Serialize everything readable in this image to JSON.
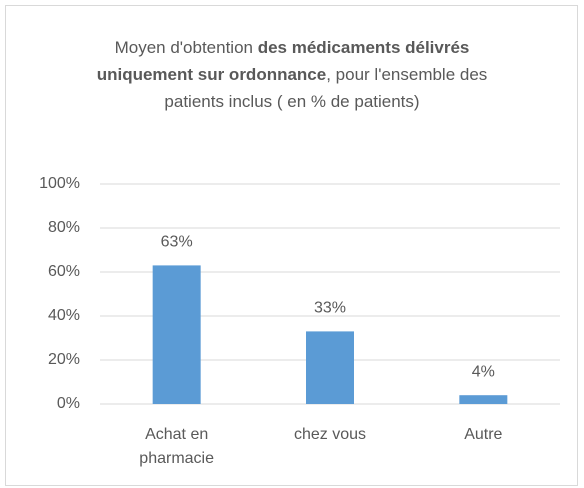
{
  "chart_data": {
    "type": "bar",
    "title": [
      {
        "text": "Moyen d'obtention ",
        "bold": false
      },
      {
        "text": "des médicaments délivrés uniquement sur ordonnance",
        "bold": true
      },
      {
        "text": ",  pour l'ensemble des patients inclus ( en % de patients)",
        "bold": false
      }
    ],
    "categories": [
      "Achat en pharmacie",
      "chez vous",
      "Autre"
    ],
    "values": [
      63,
      33,
      4
    ],
    "value_labels": [
      "63%",
      "33%",
      "4%"
    ],
    "color": "#5b9bd5",
    "ylim": [
      0,
      100
    ],
    "yticks": [
      {
        "value": 0,
        "label": "0%"
      },
      {
        "value": 20,
        "label": "20%"
      },
      {
        "value": 40,
        "label": "40%"
      },
      {
        "value": 60,
        "label": "60%"
      },
      {
        "value": 80,
        "label": "80%"
      },
      {
        "value": 100,
        "label": "100%"
      }
    ],
    "grid": true
  }
}
